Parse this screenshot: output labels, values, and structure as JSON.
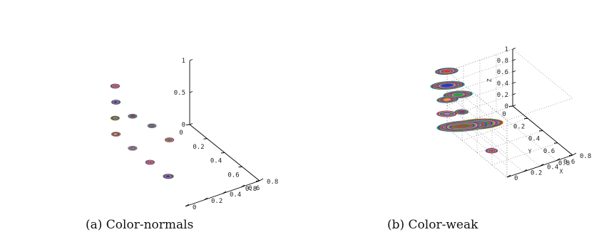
{
  "figure": {
    "captions": [
      "(a) Color-normals",
      "(b) Color-weak"
    ]
  },
  "chart_data": [
    {
      "type": "scatter",
      "title": "",
      "xlabel": "",
      "ylabel": "",
      "zlabel": "",
      "xlim": [
        0,
        0.8
      ],
      "ylim": [
        0,
        0.8
      ],
      "zlim": [
        0,
        1
      ],
      "grid": false,
      "x_ticks": [
        "0",
        "0.2",
        "0.4",
        "0.6",
        "0.8"
      ],
      "y_ticks": [
        "0",
        "0.2",
        "0.4",
        "0.6",
        "0.8"
      ],
      "z_ticks": [
        "0",
        "0.5",
        "1"
      ],
      "points": [
        {
          "x": 0.0,
          "y": 0.0,
          "z": 1.0,
          "spread": 0.3
        },
        {
          "x": 0.0,
          "y": 0.0,
          "z": 0.75,
          "spread": 0.3
        },
        {
          "x": 0.0,
          "y": 0.0,
          "z": 0.5,
          "spread": 0.3
        },
        {
          "x": 0.0,
          "y": 0.0,
          "z": 0.25,
          "spread": 0.3
        },
        {
          "x": 0.2,
          "y": 0.0,
          "z": 0.75,
          "spread": 0.3
        },
        {
          "x": 0.2,
          "y": 0.2,
          "z": 0.5,
          "spread": 0.3
        },
        {
          "x": 0.2,
          "y": 0.0,
          "z": 0.25,
          "spread": 0.3
        },
        {
          "x": 0.4,
          "y": 0.2,
          "z": 0.5,
          "spread": 0.3
        },
        {
          "x": 0.4,
          "y": 0.0,
          "z": 0.25,
          "spread": 0.3
        },
        {
          "x": 0.6,
          "y": 0.0,
          "z": 0.25,
          "spread": 0.4
        }
      ]
    },
    {
      "type": "scatter",
      "title": "",
      "xlabel": "X",
      "ylabel": "Y",
      "zlabel": "Z",
      "xlim": [
        0,
        0.8
      ],
      "ylim": [
        0,
        0.8
      ],
      "zlim": [
        0,
        1
      ],
      "grid": true,
      "x_ticks": [
        "0",
        "0.2",
        "0.4",
        "0.6",
        "0.8"
      ],
      "y_ticks": [
        "0",
        "0.2",
        "0.4",
        "0.6",
        "0.8"
      ],
      "z_ticks": [
        "0",
        "0.2",
        "0.4",
        "0.6",
        "0.8",
        "1"
      ],
      "points": [
        {
          "x": 0.0,
          "y": 0.0,
          "z": 1.0,
          "spread": 1.2
        },
        {
          "x": 0.0,
          "y": 0.0,
          "z": 0.75,
          "spread": 1.9
        },
        {
          "x": 0.15,
          "y": 0.0,
          "z": 0.75,
          "spread": 1.6
        },
        {
          "x": 0.0,
          "y": 0.0,
          "z": 0.5,
          "spread": 1.1
        },
        {
          "x": 0.2,
          "y": 0.0,
          "z": 0.5,
          "spread": 0.6
        },
        {
          "x": 0.4,
          "y": 0.0,
          "z": 0.5,
          "spread": 3.0
        },
        {
          "x": 0.0,
          "y": 0.0,
          "z": 0.25,
          "spread": 1.0
        },
        {
          "x": 0.2,
          "y": 0.0,
          "z": 0.25,
          "spread": 3.0
        },
        {
          "x": 0.6,
          "y": 0.0,
          "z": 0.25,
          "spread": 0.5
        }
      ]
    }
  ]
}
